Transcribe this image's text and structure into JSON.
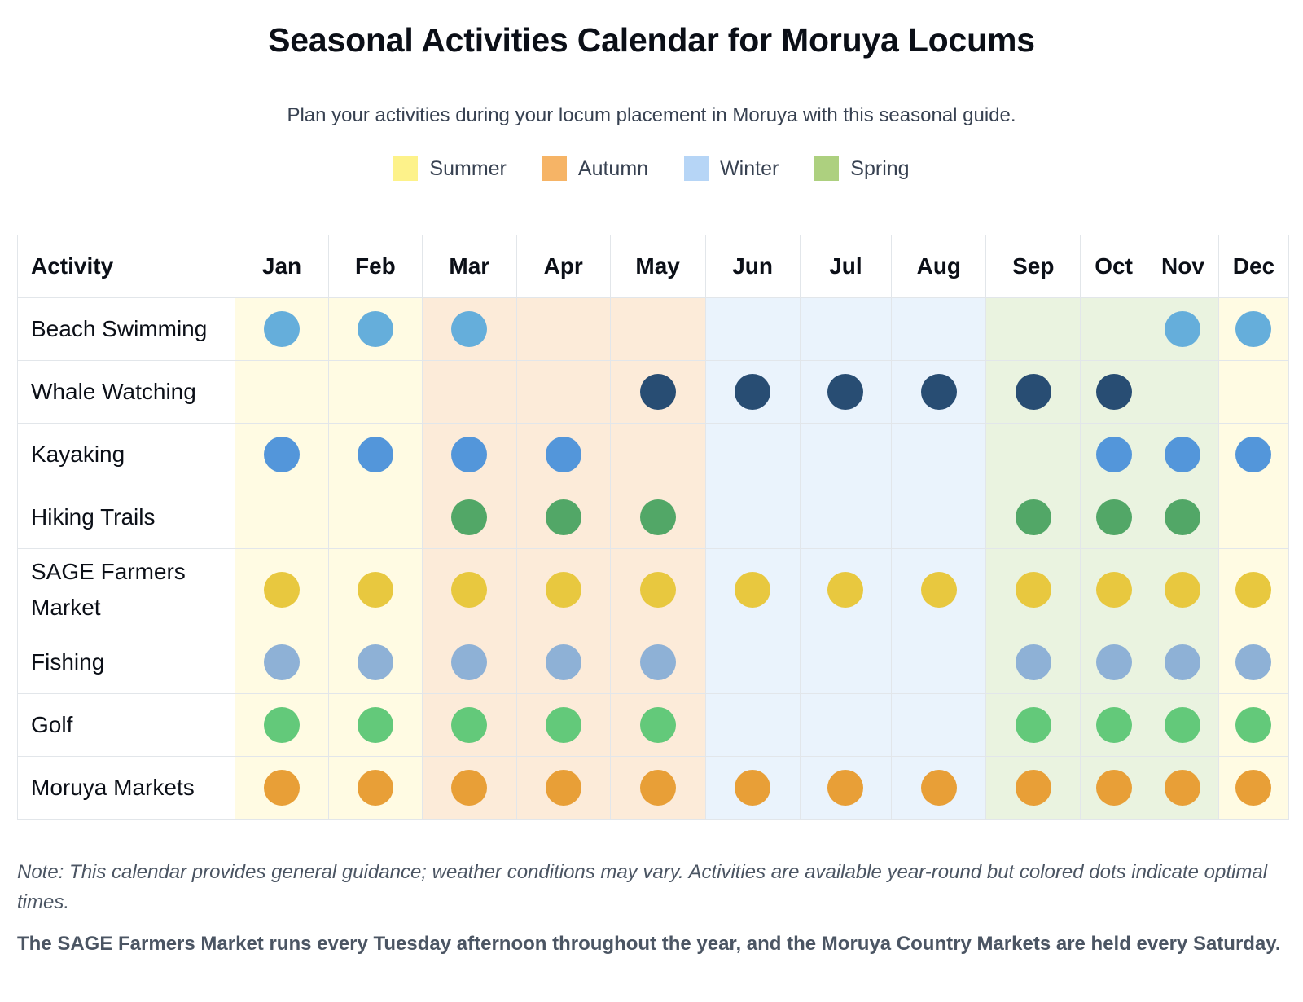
{
  "title": "Seasonal Activities Calendar for Moruya Locums",
  "subtitle": "Plan your activities during your locum placement in Moruya with this seasonal guide.",
  "legend": [
    {
      "label": "Summer",
      "color": "#fdf28a"
    },
    {
      "label": "Autumn",
      "color": "#f6b466"
    },
    {
      "label": "Winter",
      "color": "#b6d5f6"
    },
    {
      "label": "Spring",
      "color": "#add07f"
    }
  ],
  "season_backgrounds": {
    "Summer": "#fffbe3",
    "Autumn": "#fcebd9",
    "Winter": "#eaf3fc",
    "Spring": "#eaf3e0"
  },
  "table": {
    "activity_header": "Activity",
    "months": [
      {
        "label": "Jan",
        "season": "Summer"
      },
      {
        "label": "Feb",
        "season": "Summer"
      },
      {
        "label": "Mar",
        "season": "Autumn"
      },
      {
        "label": "Apr",
        "season": "Autumn"
      },
      {
        "label": "May",
        "season": "Autumn"
      },
      {
        "label": "Jun",
        "season": "Winter"
      },
      {
        "label": "Jul",
        "season": "Winter"
      },
      {
        "label": "Aug",
        "season": "Winter"
      },
      {
        "label": "Sep",
        "season": "Spring"
      },
      {
        "label": "Oct",
        "season": "Spring"
      },
      {
        "label": "Nov",
        "season": "Spring"
      },
      {
        "label": "Dec",
        "season": "Summer"
      }
    ],
    "activities": [
      {
        "name": "Beach Swimming",
        "color": "#65aedb",
        "optimal": [
          1,
          1,
          1,
          0,
          0,
          0,
          0,
          0,
          0,
          0,
          1,
          1
        ]
      },
      {
        "name": "Whale Watching",
        "color": "#284d73",
        "optimal": [
          0,
          0,
          0,
          0,
          1,
          1,
          1,
          1,
          1,
          1,
          0,
          0
        ]
      },
      {
        "name": "Kayaking",
        "color": "#5396da",
        "optimal": [
          1,
          1,
          1,
          1,
          0,
          0,
          0,
          0,
          0,
          1,
          1,
          1
        ]
      },
      {
        "name": "Hiking Trails",
        "color": "#52a767",
        "optimal": [
          0,
          0,
          1,
          1,
          1,
          0,
          0,
          0,
          1,
          1,
          1,
          0
        ]
      },
      {
        "name": "SAGE Farmers Market",
        "color": "#e8c83f",
        "optimal": [
          1,
          1,
          1,
          1,
          1,
          1,
          1,
          1,
          1,
          1,
          1,
          1
        ]
      },
      {
        "name": "Fishing",
        "color": "#8eb1d6",
        "optimal": [
          1,
          1,
          1,
          1,
          1,
          0,
          0,
          0,
          1,
          1,
          1,
          1
        ]
      },
      {
        "name": "Golf",
        "color": "#63c97a",
        "optimal": [
          1,
          1,
          1,
          1,
          1,
          0,
          0,
          0,
          1,
          1,
          1,
          1
        ]
      },
      {
        "name": "Moruya Markets",
        "color": "#e89f37",
        "optimal": [
          1,
          1,
          1,
          1,
          1,
          1,
          1,
          1,
          1,
          1,
          1,
          1
        ]
      }
    ]
  },
  "note": "Note: This calendar provides general guidance; weather conditions may vary. Activities are available year-round but colored dots indicate optimal times.",
  "info": "The SAGE Farmers Market runs every Tuesday afternoon throughout the year, and the Moruya Country Markets are held every Saturday."
}
